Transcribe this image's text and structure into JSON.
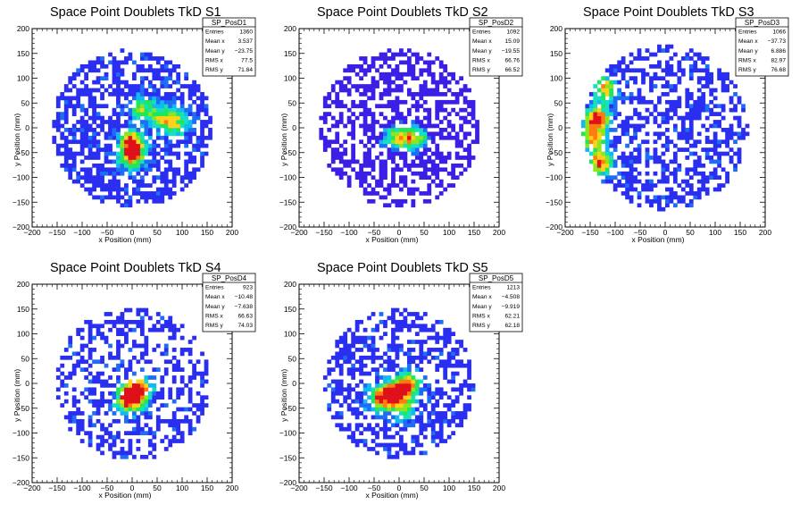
{
  "colors": {
    "frame": "#000000",
    "palette": [
      "#3a1fe6",
      "#2a2ef0",
      "#1d6ef5",
      "#12b8f0",
      "#16e0c0",
      "#1fe65a",
      "#8ce61f",
      "#ffd21a",
      "#ff7a10",
      "#e0101a"
    ]
  },
  "chart_data": [
    {
      "type": "heatmap",
      "title": "Space Point Doublets TkD S1",
      "xlabel": "x Position (mm)",
      "ylabel": "y Position (mm)",
      "xlim": [
        -200,
        200
      ],
      "ylim": [
        -200,
        200
      ],
      "xticks": [
        "−200",
        "−150",
        "−100",
        "−50",
        "0",
        "50",
        "100",
        "150",
        "200"
      ],
      "yticks": [
        "−200",
        "−150",
        "−100",
        "−50",
        "0",
        "50",
        "100",
        "150",
        "200"
      ],
      "radius": 160,
      "bin_size": 8,
      "entries": 1360,
      "stats": {
        "name": "SP_PosD1",
        "rows": [
          {
            "label": "Entries",
            "value": "1360"
          },
          {
            "label": "Mean x",
            "value": "3.537"
          },
          {
            "label": "Mean y",
            "value": "−23.75"
          },
          {
            "label": "RMS x",
            "value": "77.5"
          },
          {
            "label": "RMS y",
            "value": "71.84"
          }
        ]
      },
      "hotspots": [
        {
          "x": 0,
          "y": -30,
          "weight": 5
        },
        {
          "x": 0,
          "y": -60,
          "weight": 4
        },
        {
          "x": 20,
          "y": 40,
          "weight": 3
        },
        {
          "x": 90,
          "y": 10,
          "weight": 3
        },
        {
          "x": 60,
          "y": 20,
          "weight": 3
        }
      ]
    },
    {
      "type": "heatmap",
      "title": "Space Point Doublets TkD S2",
      "xlabel": "x Position (mm)",
      "ylabel": "y Position (mm)",
      "xlim": [
        -200,
        200
      ],
      "ylim": [
        -200,
        200
      ],
      "xticks": [
        "−200",
        "−150",
        "−100",
        "−50",
        "0",
        "50",
        "100",
        "150",
        "200"
      ],
      "yticks": [
        "−200",
        "−150",
        "−100",
        "−50",
        "0",
        "50",
        "100",
        "150",
        "200"
      ],
      "radius": 160,
      "bin_size": 8,
      "entries": 1092,
      "stats": {
        "name": "SP_PosD2",
        "rows": [
          {
            "label": "Entries",
            "value": "1092"
          },
          {
            "label": "Mean x",
            "value": "15.09"
          },
          {
            "label": "Mean y",
            "value": "−19.55"
          },
          {
            "label": "RMS x",
            "value": "66.76"
          },
          {
            "label": "RMS y",
            "value": "66.52"
          }
        ]
      },
      "hotspots": [
        {
          "x": 10,
          "y": -20,
          "weight": 4
        },
        {
          "x": 40,
          "y": -20,
          "weight": 3
        },
        {
          "x": -20,
          "y": -20,
          "weight": 2
        }
      ]
    },
    {
      "type": "heatmap",
      "title": "Space Point Doublets TkD S3",
      "xlabel": "x Position (mm)",
      "ylabel": "y Position (mm)",
      "xlim": [
        -200,
        200
      ],
      "ylim": [
        -200,
        200
      ],
      "xticks": [
        "−200",
        "−150",
        "−100",
        "−50",
        "0",
        "50",
        "100",
        "150",
        "200"
      ],
      "yticks": [
        "−200",
        "−150",
        "−100",
        "−50",
        "0",
        "50",
        "100",
        "150",
        "200"
      ],
      "radius": 165,
      "bin_size": 8,
      "entries": 1066,
      "stats": {
        "name": "SP_PosD3",
        "rows": [
          {
            "label": "Entries",
            "value": "1066"
          },
          {
            "label": "Mean x",
            "value": "−37.73"
          },
          {
            "label": "Mean y",
            "value": "6.886"
          },
          {
            "label": "RMS x",
            "value": "82.97"
          },
          {
            "label": "RMS y",
            "value": "76.68"
          }
        ]
      },
      "hotspots": [
        {
          "x": -135,
          "y": 20,
          "weight": 5
        },
        {
          "x": -130,
          "y": -70,
          "weight": 5
        },
        {
          "x": -120,
          "y": 80,
          "weight": 4
        },
        {
          "x": -145,
          "y": -20,
          "weight": 4
        }
      ]
    },
    {
      "type": "heatmap",
      "title": "Space Point Doublets TkD S4",
      "xlabel": "x Position (mm)",
      "ylabel": "y Position (mm)",
      "xlim": [
        -200,
        200
      ],
      "ylim": [
        -200,
        200
      ],
      "xticks": [
        "−200",
        "−150",
        "−100",
        "−50",
        "0",
        "50",
        "100",
        "150",
        "200"
      ],
      "yticks": [
        "−200",
        "−150",
        "−100",
        "−50",
        "0",
        "50",
        "100",
        "150",
        "200"
      ],
      "radius": 155,
      "bin_size": 8,
      "entries": 923,
      "stats": {
        "name": "SP_PosD4",
        "rows": [
          {
            "label": "Entries",
            "value": "923"
          },
          {
            "label": "Mean x",
            "value": "−10.48"
          },
          {
            "label": "Mean y",
            "value": "−7.638"
          },
          {
            "label": "RMS x",
            "value": "66.63"
          },
          {
            "label": "RMS y",
            "value": "74.03"
          }
        ]
      },
      "hotspots": [
        {
          "x": 0,
          "y": -20,
          "weight": 5
        },
        {
          "x": 20,
          "y": -10,
          "weight": 3
        },
        {
          "x": -10,
          "y": -40,
          "weight": 3
        }
      ]
    },
    {
      "type": "heatmap",
      "title": "Space Point Doublets TkD S5",
      "xlabel": "x Position (mm)",
      "ylabel": "y Position (mm)",
      "xlim": [
        -200,
        200
      ],
      "ylim": [
        -200,
        200
      ],
      "xticks": [
        "−200",
        "−150",
        "−100",
        "−50",
        "0",
        "50",
        "100",
        "150",
        "200"
      ],
      "yticks": [
        "−200",
        "−150",
        "−100",
        "−50",
        "0",
        "50",
        "100",
        "150",
        "200"
      ],
      "radius": 150,
      "bin_size": 8,
      "entries": 1213,
      "stats": {
        "name": "SP_PosD5",
        "rows": [
          {
            "label": "Entries",
            "value": "1213"
          },
          {
            "label": "Mean x",
            "value": "−4.508"
          },
          {
            "label": "Mean y",
            "value": "−9.919"
          },
          {
            "label": "RMS x",
            "value": "62.21"
          },
          {
            "label": "RMS y",
            "value": "62.18"
          }
        ]
      },
      "hotspots": [
        {
          "x": -10,
          "y": -20,
          "weight": 5
        },
        {
          "x": 20,
          "y": 0,
          "weight": 4
        },
        {
          "x": -40,
          "y": -30,
          "weight": 4
        },
        {
          "x": 10,
          "y": -50,
          "weight": 3
        }
      ]
    }
  ]
}
